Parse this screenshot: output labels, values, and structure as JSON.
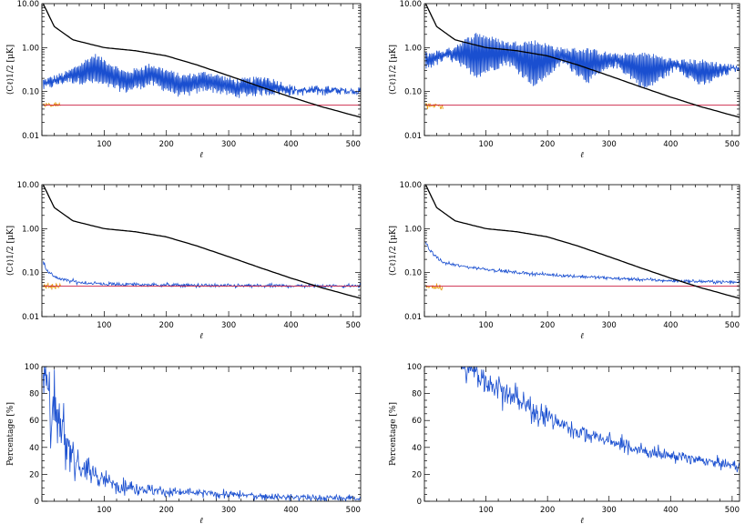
{
  "colors": {
    "model": "#000000",
    "measured": "#1a4fd0",
    "noise_red": "#cc2244",
    "noise_orange": "#e8a020"
  },
  "chart_data": [
    {
      "panel": "top-left",
      "type": "line",
      "yscale": "log",
      "xlim": [
        0,
        512
      ],
      "ylim": [
        0.01,
        10
      ],
      "xticks": [
        "100",
        "200",
        "300",
        "400",
        "500"
      ],
      "yticks": [
        "0.01",
        "0.10",
        "1.00",
        "10.00"
      ],
      "xlabel": "ℓ",
      "ylabel": "⟨Cℓ⟩1/2 [μK]",
      "series": [
        {
          "role": "model",
          "kind": "smooth",
          "x": [
            2,
            20,
            50,
            100,
            150,
            200,
            250,
            300,
            350,
            400,
            450,
            512
          ],
          "y": [
            10,
            3.0,
            1.5,
            1.0,
            0.85,
            0.65,
            0.4,
            0.23,
            0.13,
            0.075,
            0.045,
            0.026
          ]
        },
        {
          "role": "measured",
          "kind": "oscillating",
          "x": [
            2,
            40,
            85,
            135,
            175,
            225,
            265,
            310,
            360,
            410,
            450,
            512
          ],
          "peak": [
            0.2,
            0.3,
            0.75,
            0.3,
            0.45,
            0.25,
            0.3,
            0.2,
            0.23,
            0.13,
            0.14,
            0.11
          ],
          "trough": [
            0.1,
            0.15,
            0.14,
            0.09,
            0.13,
            0.07,
            0.1,
            0.07,
            0.08,
            0.08,
            0.08,
            0.09
          ]
        },
        {
          "role": "noise_red",
          "kind": "flat",
          "x": [
            2,
            512
          ],
          "y": [
            0.049,
            0.049
          ]
        },
        {
          "role": "noise_orange",
          "kind": "noisy",
          "x": [
            2,
            30
          ],
          "y": [
            0.05,
            0.047
          ],
          "scatter": 0.15
        }
      ]
    },
    {
      "panel": "top-right",
      "type": "line",
      "yscale": "log",
      "xlim": [
        0,
        512
      ],
      "ylim": [
        0.01,
        10
      ],
      "xticks": [
        "100",
        "200",
        "300",
        "400",
        "500"
      ],
      "yticks": [
        "0.01",
        "0.10",
        "1.00",
        "10.00"
      ],
      "xlabel": "ℓ",
      "ylabel": "⟨Cℓ⟩1/2 [μK]",
      "series": [
        {
          "role": "model",
          "kind": "smooth",
          "x": [
            2,
            20,
            50,
            100,
            150,
            200,
            250,
            300,
            350,
            400,
            450,
            512
          ],
          "y": [
            10,
            3.0,
            1.5,
            1.0,
            0.85,
            0.65,
            0.4,
            0.23,
            0.13,
            0.075,
            0.045,
            0.026
          ]
        },
        {
          "role": "measured",
          "kind": "oscillating",
          "x": [
            2,
            40,
            85,
            135,
            180,
            225,
            265,
            310,
            360,
            410,
            450,
            512
          ],
          "peak": [
            0.8,
            1.0,
            2.3,
            1.4,
            1.5,
            1.0,
            1.0,
            0.75,
            0.8,
            0.55,
            0.55,
            0.4
          ],
          "trough": [
            0.3,
            0.5,
            0.2,
            0.4,
            0.12,
            0.4,
            0.15,
            0.35,
            0.1,
            0.3,
            0.12,
            0.3
          ]
        },
        {
          "role": "noise_red",
          "kind": "flat",
          "x": [
            2,
            512
          ],
          "y": [
            0.049,
            0.049
          ]
        },
        {
          "role": "noise_orange",
          "kind": "noisy",
          "x": [
            2,
            30
          ],
          "y": [
            0.05,
            0.047
          ],
          "scatter": 0.15
        }
      ]
    },
    {
      "panel": "middle-left",
      "type": "line",
      "yscale": "log",
      "xlim": [
        0,
        512
      ],
      "ylim": [
        0.01,
        10
      ],
      "xticks": [
        "100",
        "200",
        "300",
        "400",
        "500"
      ],
      "yticks": [
        "0.01",
        "0.10",
        "1.00",
        "10.00"
      ],
      "xlabel": "ℓ",
      "ylabel": "⟨Cℓ⟩1/2 [μK]",
      "series": [
        {
          "role": "model",
          "kind": "smooth",
          "x": [
            2,
            20,
            50,
            100,
            150,
            200,
            250,
            300,
            350,
            400,
            450,
            512
          ],
          "y": [
            10,
            3.0,
            1.5,
            1.0,
            0.85,
            0.65,
            0.4,
            0.23,
            0.13,
            0.075,
            0.045,
            0.026
          ]
        },
        {
          "role": "measured",
          "kind": "noisy",
          "x": [
            2,
            10,
            30,
            60,
            100,
            200,
            300,
            400,
            512
          ],
          "y": [
            0.18,
            0.1,
            0.07,
            0.06,
            0.055,
            0.052,
            0.05,
            0.05,
            0.05
          ],
          "scatter": 0.1
        },
        {
          "role": "noise_red",
          "kind": "flat",
          "x": [
            2,
            512
          ],
          "y": [
            0.049,
            0.049
          ]
        },
        {
          "role": "noise_orange",
          "kind": "noisy",
          "x": [
            2,
            30
          ],
          "y": [
            0.05,
            0.047
          ],
          "scatter": 0.15
        }
      ]
    },
    {
      "panel": "middle-right",
      "type": "line",
      "yscale": "log",
      "xlim": [
        0,
        512
      ],
      "ylim": [
        0.01,
        10
      ],
      "xticks": [
        "100",
        "200",
        "300",
        "400",
        "500"
      ],
      "yticks": [
        "0.01",
        "0.10",
        "1.00",
        "10.00"
      ],
      "xlabel": "ℓ",
      "ylabel": "⟨Cℓ⟩1/2 [μK]",
      "series": [
        {
          "role": "model",
          "kind": "smooth",
          "x": [
            2,
            20,
            50,
            100,
            150,
            200,
            250,
            300,
            350,
            400,
            450,
            512
          ],
          "y": [
            10,
            3.0,
            1.5,
            1.0,
            0.85,
            0.65,
            0.4,
            0.23,
            0.13,
            0.075,
            0.045,
            0.026
          ]
        },
        {
          "role": "measured",
          "kind": "noisy",
          "x": [
            2,
            10,
            30,
            60,
            100,
            150,
            200,
            300,
            400,
            512
          ],
          "y": [
            0.5,
            0.3,
            0.17,
            0.14,
            0.12,
            0.1,
            0.09,
            0.075,
            0.065,
            0.06
          ],
          "scatter": 0.08
        },
        {
          "role": "noise_red",
          "kind": "flat",
          "x": [
            2,
            512
          ],
          "y": [
            0.049,
            0.049
          ]
        },
        {
          "role": "noise_orange",
          "kind": "noisy",
          "x": [
            2,
            30
          ],
          "y": [
            0.05,
            0.047
          ],
          "scatter": 0.15
        }
      ]
    },
    {
      "panel": "bottom-left",
      "type": "line",
      "yscale": "linear",
      "xlim": [
        0,
        512
      ],
      "ylim": [
        0,
        100
      ],
      "xticks": [
        "100",
        "200",
        "300",
        "400",
        "500"
      ],
      "yticks": [
        "0",
        "20",
        "40",
        "60",
        "80",
        "100"
      ],
      "xlabel": "ℓ",
      "ylabel": "Percentage [%]",
      "series": [
        {
          "role": "measured",
          "kind": "noisy-linear",
          "x": [
            2,
            10,
            20,
            40,
            60,
            100,
            150,
            200,
            300,
            400,
            512
          ],
          "y": [
            100,
            80,
            60,
            40,
            28,
            15,
            10,
            7,
            5,
            3,
            2
          ],
          "scatter": 0.45
        }
      ]
    },
    {
      "panel": "bottom-right",
      "type": "line",
      "yscale": "linear",
      "xlim": [
        0,
        512
      ],
      "ylim": [
        0,
        100
      ],
      "xticks": [
        "100",
        "200",
        "300",
        "400",
        "500"
      ],
      "yticks": [
        "0",
        "20",
        "40",
        "60",
        "80",
        "100"
      ],
      "xlabel": "ℓ",
      "ylabel": "Percentage [%]",
      "series": [
        {
          "role": "measured",
          "kind": "noisy-linear",
          "x": [
            60,
            100,
            150,
            200,
            250,
            300,
            350,
            400,
            450,
            512
          ],
          "y": [
            100,
            90,
            75,
            62,
            52,
            45,
            38,
            34,
            30,
            26
          ],
          "scatter": 0.12
        }
      ]
    }
  ]
}
